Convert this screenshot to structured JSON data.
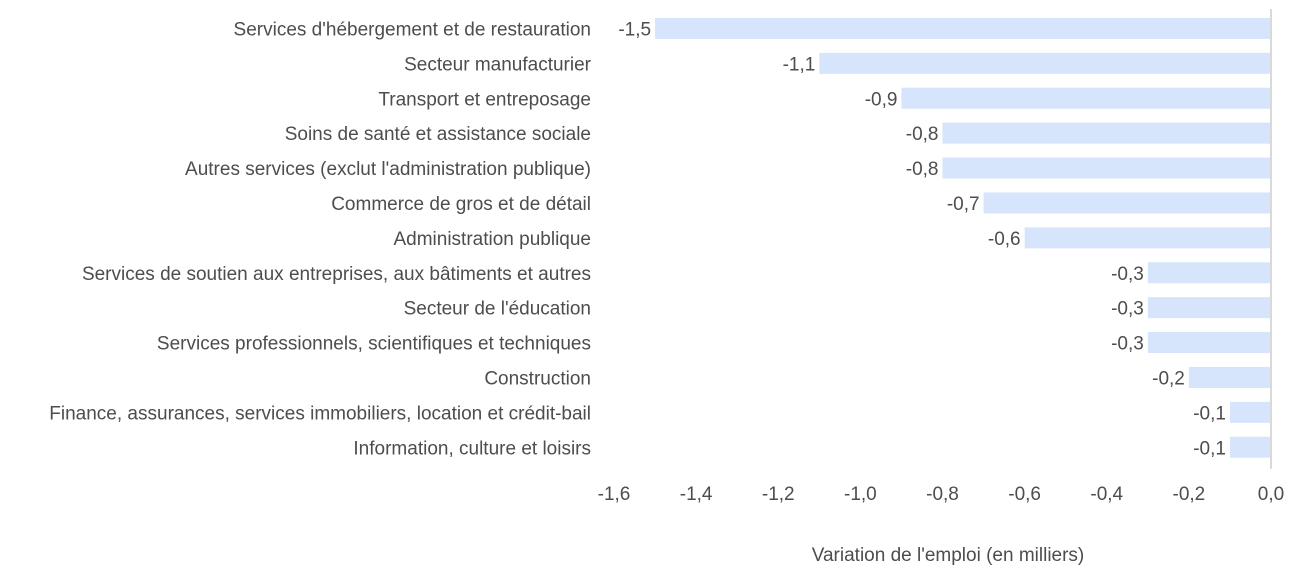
{
  "chart_data": {
    "type": "bar",
    "orientation": "horizontal",
    "categories": [
      "Services d'hébergement et de restauration",
      "Secteur manufacturier",
      "Transport et entreposage",
      "Soins de santé et assistance sociale",
      "Autres services (exclut l'administration publique)",
      "Commerce de gros et de détail",
      "Administration publique",
      "Services de soutien aux entreprises, aux bâtiments et autres",
      "Secteur de l'éducation",
      "Services professionnels, scientifiques et techniques",
      "Construction",
      "Finance, assurances, services immobiliers, location et crédit-bail",
      "Information, culture et loisirs"
    ],
    "values": [
      -1.5,
      -1.1,
      -0.9,
      -0.8,
      -0.8,
      -0.7,
      -0.6,
      -0.3,
      -0.3,
      -0.3,
      -0.2,
      -0.1,
      -0.1
    ],
    "value_labels": [
      "-1,5",
      "-1,1",
      "-0,9",
      "-0,8",
      "-0,8",
      "-0,7",
      "-0,6",
      "-0,3",
      "-0,3",
      "-0,3",
      "-0,2",
      "-0,1",
      "-0,1"
    ],
    "xlim": [
      -1.6,
      0.0
    ],
    "x_ticks": [
      -1.6,
      -1.4,
      -1.2,
      -1.0,
      -0.8,
      -0.6,
      -0.4,
      -0.2,
      0.0
    ],
    "x_tick_labels": [
      "-1,6",
      "-1,4",
      "-1,2",
      "-1,0",
      "-0,8",
      "-0,6",
      "-0,4",
      "-0,2",
      "0,0"
    ],
    "xlabel": "Variation de l'emploi (en milliers)",
    "ylabel": "",
    "title": "",
    "grid": false,
    "bar_color": "#d6e5fb",
    "axis_color": "#d9d9d9",
    "text_color": "#4d4d4d"
  }
}
